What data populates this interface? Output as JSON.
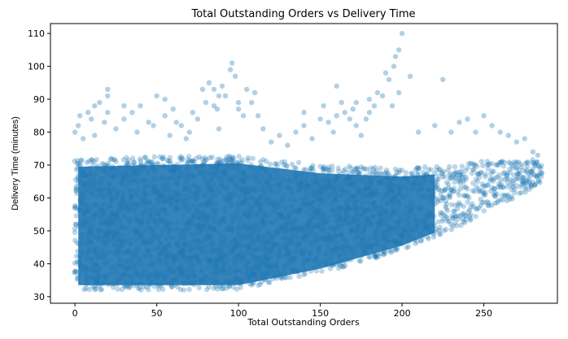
{
  "chart_data": {
    "type": "scatter",
    "title": "Total Outstanding Orders vs Delivery Time",
    "xlabel": "Total Outstanding Orders",
    "ylabel": "Delivery Time (minutes)",
    "xlim": [
      -15,
      295
    ],
    "ylim": [
      28,
      113
    ],
    "x_ticks": [
      0,
      50,
      100,
      150,
      200,
      250
    ],
    "y_ticks": [
      30,
      40,
      50,
      60,
      70,
      80,
      90,
      100,
      110
    ],
    "grid": false,
    "legend": "none",
    "marker_color": "#1f77b4",
    "marker_alpha": 0.3,
    "point_cloud": {
      "x_range": [
        0,
        285
      ],
      "y_floor": 32,
      "lower_boundary": [
        [
          0,
          32
        ],
        [
          100,
          32
        ],
        [
          150,
          37
        ],
        [
          200,
          44
        ],
        [
          230,
          50
        ],
        [
          260,
          58
        ],
        [
          285,
          64
        ]
      ],
      "dense_upper_boundary": [
        [
          0,
          72
        ],
        [
          100,
          73
        ],
        [
          150,
          70
        ],
        [
          200,
          69
        ],
        [
          230,
          70
        ],
        [
          260,
          72
        ],
        [
          285,
          72
        ]
      ]
    },
    "outliers": [
      [
        0,
        80
      ],
      [
        2,
        82
      ],
      [
        3,
        85
      ],
      [
        5,
        78
      ],
      [
        8,
        86
      ],
      [
        10,
        84
      ],
      [
        12,
        79
      ],
      [
        15,
        89
      ],
      [
        18,
        83
      ],
      [
        20,
        86
      ],
      [
        25,
        81
      ],
      [
        20,
        93
      ],
      [
        30,
        84
      ],
      [
        35,
        86
      ],
      [
        38,
        80
      ],
      [
        40,
        88
      ],
      [
        45,
        83
      ],
      [
        48,
        82
      ],
      [
        50,
        91
      ],
      [
        55,
        85
      ],
      [
        58,
        79
      ],
      [
        60,
        87
      ],
      [
        62,
        83
      ],
      [
        65,
        82
      ],
      [
        68,
        78
      ],
      [
        70,
        80
      ],
      [
        72,
        86
      ],
      [
        75,
        84
      ],
      [
        78,
        93
      ],
      [
        80,
        89
      ],
      [
        82,
        95
      ],
      [
        85,
        88
      ],
      [
        88,
        81
      ],
      [
        90,
        94
      ],
      [
        92,
        91
      ],
      [
        95,
        99
      ],
      [
        96,
        101
      ],
      [
        98,
        97
      ],
      [
        100,
        87
      ],
      [
        103,
        85
      ],
      [
        105,
        93
      ],
      [
        108,
        89
      ],
      [
        110,
        92
      ],
      [
        112,
        85
      ],
      [
        115,
        81
      ],
      [
        120,
        77
      ],
      [
        125,
        79
      ],
      [
        130,
        76
      ],
      [
        135,
        80
      ],
      [
        140,
        82
      ],
      [
        145,
        78
      ],
      [
        150,
        84
      ],
      [
        152,
        88
      ],
      [
        155,
        83
      ],
      [
        158,
        80
      ],
      [
        160,
        85
      ],
      [
        163,
        89
      ],
      [
        165,
        86
      ],
      [
        168,
        84
      ],
      [
        170,
        87
      ],
      [
        172,
        82
      ],
      [
        175,
        79
      ],
      [
        178,
        84
      ],
      [
        180,
        86
      ],
      [
        183,
        88
      ],
      [
        185,
        92
      ],
      [
        188,
        91
      ],
      [
        190,
        98
      ],
      [
        192,
        96
      ],
      [
        195,
        100
      ],
      [
        196,
        103
      ],
      [
        198,
        105
      ],
      [
        200,
        110
      ],
      [
        205,
        97
      ],
      [
        210,
        80
      ],
      [
        220,
        82
      ],
      [
        225,
        96
      ],
      [
        230,
        80
      ],
      [
        235,
        83
      ],
      [
        240,
        84
      ],
      [
        245,
        80
      ],
      [
        250,
        85
      ],
      [
        255,
        82
      ],
      [
        260,
        80
      ],
      [
        265,
        79
      ],
      [
        270,
        77
      ],
      [
        275,
        78
      ],
      [
        280,
        74
      ],
      [
        283,
        73
      ],
      [
        88,
        91
      ],
      [
        85,
        93
      ],
      [
        87,
        87
      ],
      [
        180,
        90
      ],
      [
        160,
        94
      ],
      [
        20,
        91
      ],
      [
        12,
        88
      ],
      [
        30,
        88
      ],
      [
        55,
        90
      ],
      [
        140,
        86
      ],
      [
        172,
        89
      ],
      [
        198,
        92
      ],
      [
        194,
        88
      ],
      [
        100,
        89
      ]
    ]
  }
}
